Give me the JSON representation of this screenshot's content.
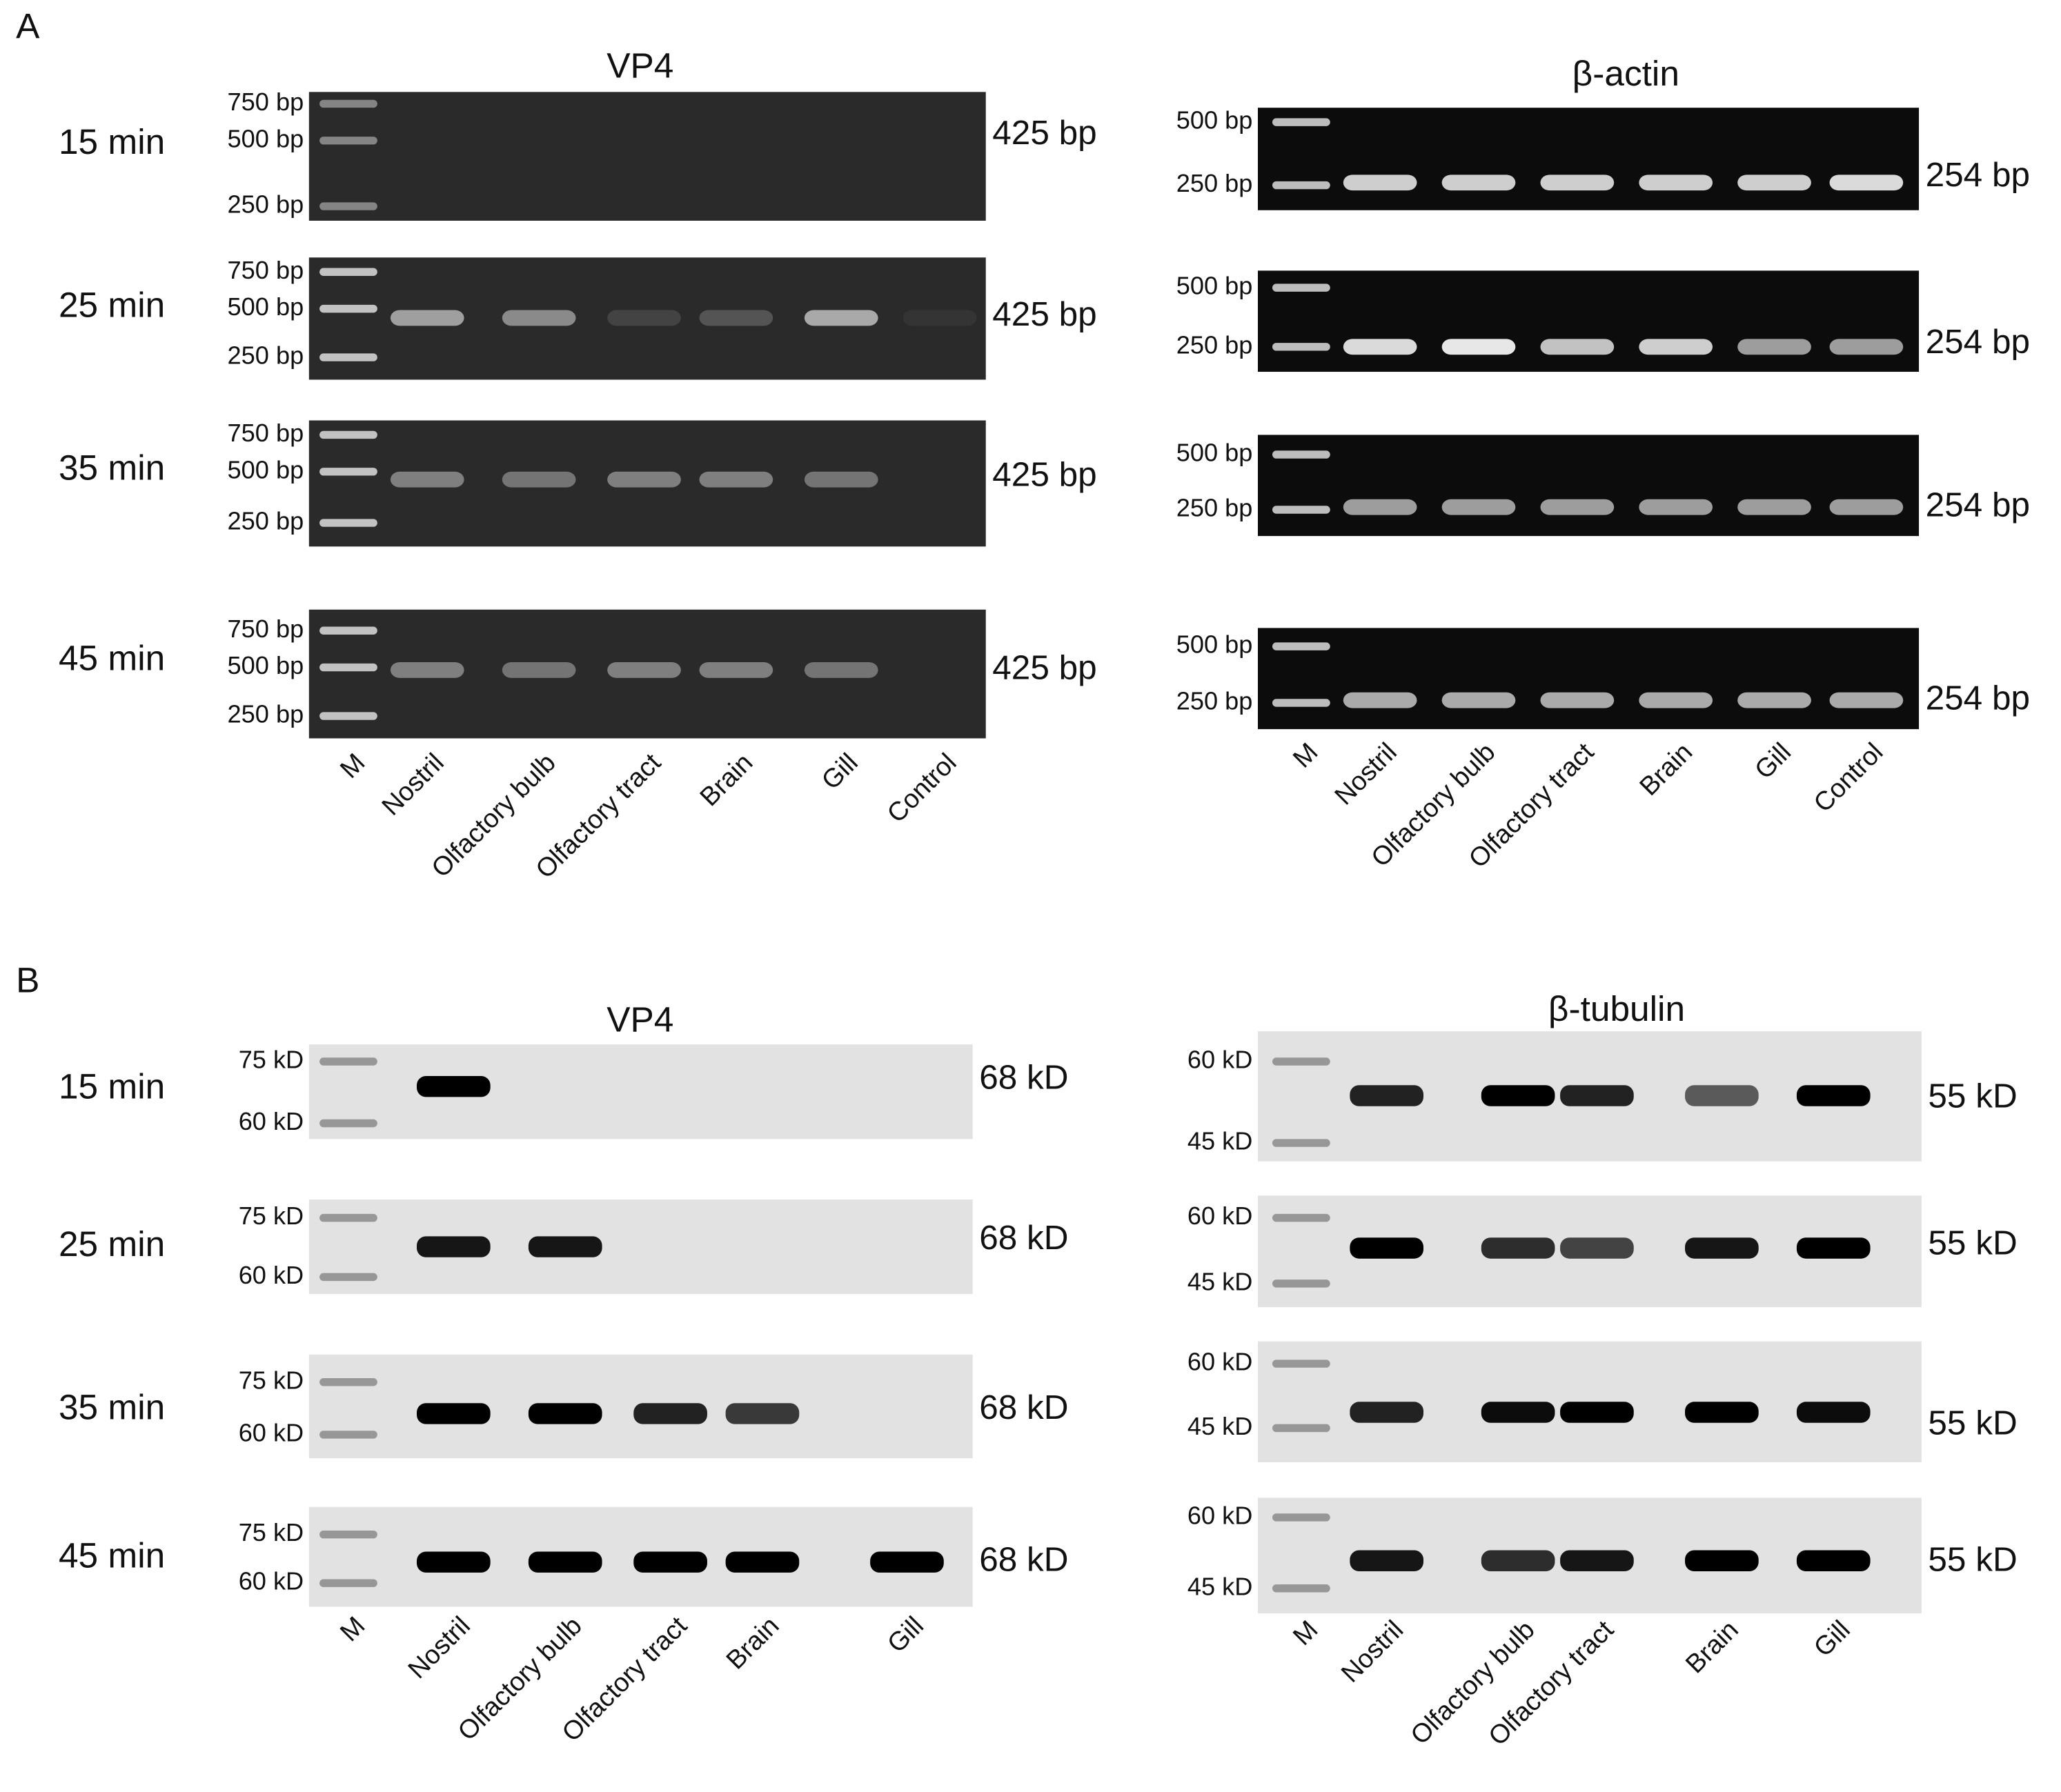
{
  "panels": [
    {
      "label": "A",
      "blots": [
        {
          "title": "VP4",
          "rows": [
            {
              "time": "15 min",
              "markers": [
                "750 bp",
                "500 bp",
                "250 bp"
              ],
              "size": "425 bp"
            },
            {
              "time": "25 min",
              "markers": [
                "750 bp",
                "500 bp",
                "250 bp"
              ],
              "size": "425 bp"
            },
            {
              "time": "35 min",
              "markers": [
                "750 bp",
                "500 bp",
                "250 bp"
              ],
              "size": "425 bp"
            },
            {
              "time": "45 min",
              "markers": [
                "750 bp",
                "500 bp",
                "250 bp"
              ],
              "size": "425 bp"
            }
          ],
          "lanes": [
            "M",
            "Nostril",
            "Olfactory bulb",
            "Olfactory tract",
            "Brain",
            "Gill",
            "Control"
          ]
        },
        {
          "title": "β-actin",
          "rows": [
            {
              "markers": [
                "500 bp",
                "250 bp"
              ],
              "size": "254 bp"
            },
            {
              "markers": [
                "500 bp",
                "250 bp"
              ],
              "size": "254 bp"
            },
            {
              "markers": [
                "500 bp",
                "250 bp"
              ],
              "size": "254 bp"
            },
            {
              "markers": [
                "500 bp",
                "250 bp"
              ],
              "size": "254 bp"
            }
          ],
          "lanes": [
            "M",
            "Nostril",
            "Olfactory bulb",
            "Olfactory tract",
            "Brain",
            "Gill",
            "Control"
          ]
        }
      ]
    },
    {
      "label": "B",
      "blots": [
        {
          "title": "VP4",
          "rows": [
            {
              "time": "15 min",
              "markers": [
                "75 kD",
                "60 kD"
              ],
              "size": "68 kD"
            },
            {
              "time": "25 min",
              "markers": [
                "75 kD",
                "60 kD"
              ],
              "size": "68 kD"
            },
            {
              "time": "35 min",
              "markers": [
                "75 kD",
                "60 kD"
              ],
              "size": "68 kD"
            },
            {
              "time": "45 min",
              "markers": [
                "75 kD",
                "60 kD"
              ],
              "size": "68 kD"
            }
          ],
          "lanes": [
            "M",
            "Nostril",
            "Olfactory bulb",
            "Olfactory tract",
            "Brain",
            "Gill"
          ]
        },
        {
          "title": "β-tubulin",
          "rows": [
            {
              "markers": [
                "60 kD",
                "45 kD"
              ],
              "size": "55 kD"
            },
            {
              "markers": [
                "60 kD",
                "45 kD"
              ],
              "size": "55 kD"
            },
            {
              "markers": [
                "60 kD",
                "45 kD"
              ],
              "size": "55 kD"
            },
            {
              "markers": [
                "60 kD",
                "45 kD"
              ],
              "size": "55 kD"
            }
          ],
          "lanes": [
            "M",
            "Nostril",
            "Olfactory bulb",
            "Olfactory tract",
            "Brain",
            "Gill"
          ]
        }
      ]
    }
  ]
}
